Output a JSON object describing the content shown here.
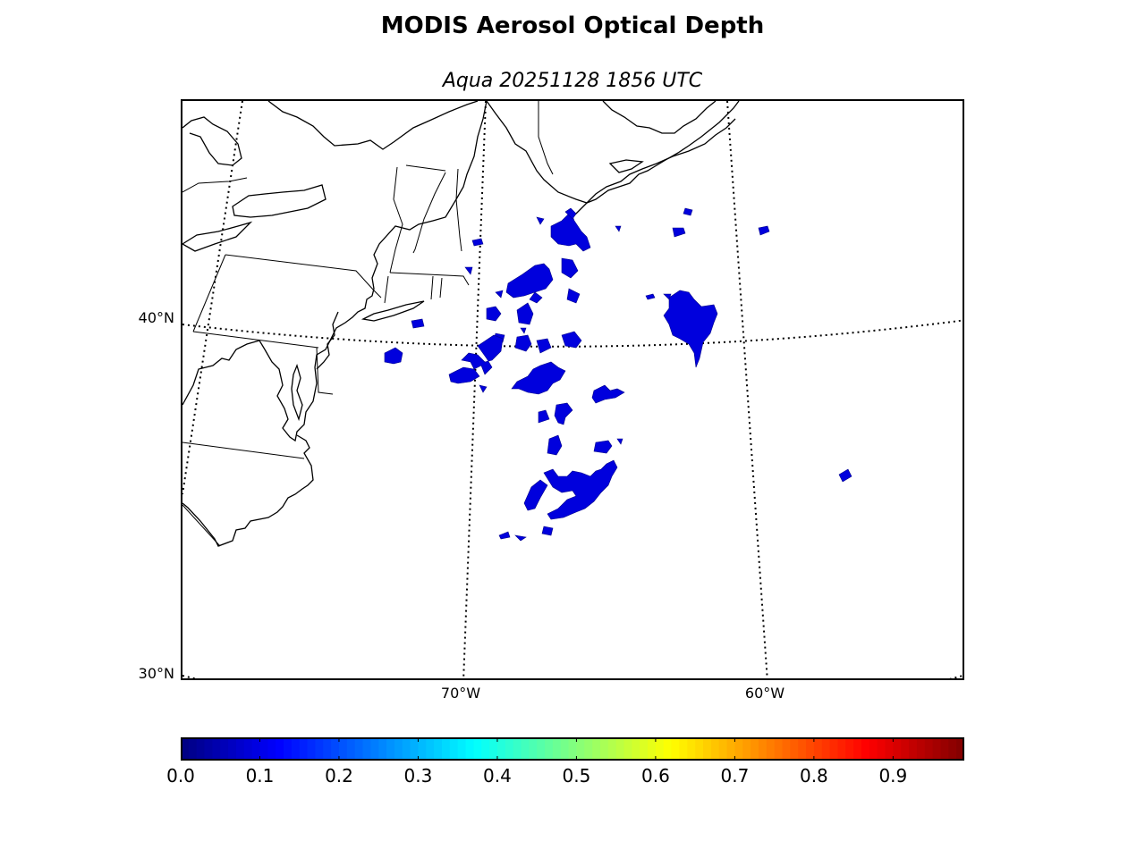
{
  "title": "MODIS Aerosol Optical Depth",
  "subtitle": "Aqua 20251128 1856 UTC",
  "map": {
    "projection": "conic",
    "latitude_labels": [
      "40°N",
      "30°N"
    ],
    "longitude_labels": [
      "70°W",
      "60°W"
    ],
    "graticule": "dotted",
    "coastlines": true,
    "state_boundaries": true,
    "aod_fill_color": "#0000dd",
    "aod_value_range": "0.0–0.1"
  },
  "colorbar": {
    "colormap": "jet",
    "min": 0.0,
    "max": 0.99,
    "ticks": [
      "0.0",
      "0.1",
      "0.2",
      "0.3",
      "0.4",
      "0.5",
      "0.6",
      "0.7",
      "0.8",
      "0.9"
    ],
    "tick_values": [
      0.0,
      0.1,
      0.2,
      0.3,
      0.4,
      0.5,
      0.6,
      0.7,
      0.8,
      0.9
    ]
  }
}
